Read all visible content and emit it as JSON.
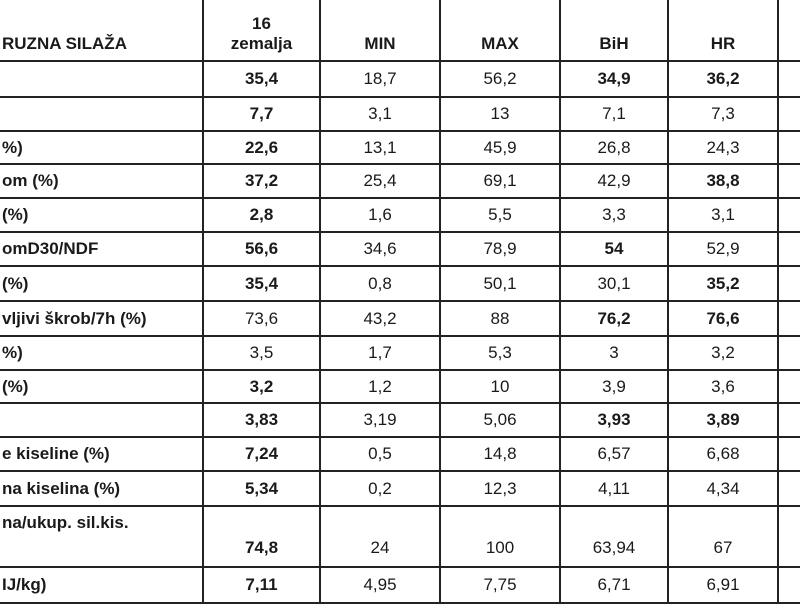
{
  "table": {
    "header": [
      "RUZNA SILAŽA",
      "16\nzemalja",
      "MIN",
      "MAX",
      "BiH",
      "HR"
    ],
    "rows": [
      {
        "label": "",
        "values": [
          "35,4",
          "18,7",
          "56,2",
          "34,9",
          "36,2"
        ],
        "bold": [
          true,
          false,
          false,
          true,
          true
        ]
      },
      {
        "label": "",
        "values": [
          "7,7",
          "3,1",
          "13",
          "7,1",
          "7,3"
        ],
        "bold": [
          true,
          false,
          false,
          false,
          false
        ]
      },
      {
        "label": "%)",
        "values": [
          "22,6",
          "13,1",
          "45,9",
          "26,8",
          "24,3"
        ],
        "bold": [
          true,
          false,
          false,
          false,
          false
        ]
      },
      {
        "label": "om (%)",
        "values": [
          "37,2",
          "25,4",
          "69,1",
          "42,9",
          "38,8"
        ],
        "bold": [
          true,
          false,
          false,
          false,
          true
        ]
      },
      {
        "label": "(%)",
        "values": [
          "2,8",
          "1,6",
          "5,5",
          "3,3",
          "3,1"
        ],
        "bold": [
          true,
          false,
          false,
          false,
          false
        ]
      },
      {
        "label": "omD30/NDF",
        "values": [
          "56,6",
          "34,6",
          "78,9",
          "54",
          "52,9"
        ],
        "bold": [
          true,
          false,
          false,
          true,
          false
        ]
      },
      {
        "label": "(%)",
        "values": [
          "35,4",
          "0,8",
          "50,1",
          "30,1",
          "35,2"
        ],
        "bold": [
          true,
          false,
          false,
          false,
          true
        ]
      },
      {
        "label": "vljivi škrob/7h (%)",
        "values": [
          "73,6",
          "43,2",
          "88",
          "76,2",
          "76,6"
        ],
        "bold": [
          false,
          false,
          false,
          true,
          true
        ]
      },
      {
        "label": "%)",
        "values": [
          "3,5",
          "1,7",
          "5,3",
          "3",
          "3,2"
        ],
        "bold": [
          false,
          false,
          false,
          false,
          false
        ]
      },
      {
        "label": "(%)",
        "values": [
          "3,2",
          "1,2",
          "10",
          "3,9",
          "3,6"
        ],
        "bold": [
          true,
          false,
          false,
          false,
          false
        ]
      },
      {
        "label": "",
        "values": [
          "3,83",
          "3,19",
          "5,06",
          "3,93",
          "3,89"
        ],
        "bold": [
          true,
          false,
          false,
          true,
          true
        ]
      },
      {
        "label": "e kiseline (%)",
        "values": [
          "7,24",
          "0,5",
          "14,8",
          "6,57",
          "6,68"
        ],
        "bold": [
          true,
          false,
          false,
          false,
          false
        ]
      },
      {
        "label": "na kiselina (%)",
        "values": [
          "5,34",
          "0,2",
          "12,3",
          "4,11",
          "4,34"
        ],
        "bold": [
          true,
          false,
          false,
          false,
          false
        ]
      },
      {
        "label": "na/ukup. sil.kis.",
        "values": [
          "74,8",
          "24",
          "100",
          "63,94",
          "67"
        ],
        "bold": [
          true,
          false,
          false,
          false,
          false
        ]
      },
      {
        "label": "IJ/kg)",
        "values": [
          "7,11",
          "4,95",
          "7,75",
          "6,71",
          "6,91"
        ],
        "bold": [
          true,
          false,
          false,
          false,
          false
        ]
      }
    ]
  }
}
